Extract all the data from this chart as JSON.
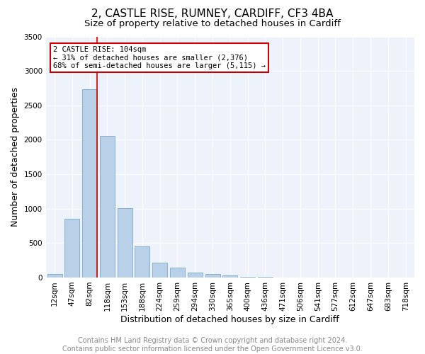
{
  "title1": "2, CASTLE RISE, RUMNEY, CARDIFF, CF3 4BA",
  "title2": "Size of property relative to detached houses in Cardiff",
  "xlabel": "Distribution of detached houses by size in Cardiff",
  "ylabel": "Number of detached properties",
  "categories": [
    "12sqm",
    "47sqm",
    "82sqm",
    "118sqm",
    "153sqm",
    "188sqm",
    "224sqm",
    "259sqm",
    "294sqm",
    "330sqm",
    "365sqm",
    "400sqm",
    "436sqm",
    "471sqm",
    "506sqm",
    "541sqm",
    "577sqm",
    "612sqm",
    "647sqm",
    "683sqm",
    "718sqm"
  ],
  "values": [
    55,
    850,
    2730,
    2060,
    1010,
    455,
    215,
    145,
    70,
    55,
    30,
    10,
    5,
    2,
    1,
    0,
    0,
    0,
    0,
    0,
    0
  ],
  "bar_color": "#b8d0e8",
  "bar_edge_color": "#7aaaca",
  "vline_color": "#cc0000",
  "annotation_text": "2 CASTLE RISE: 104sqm\n← 31% of detached houses are smaller (2,376)\n68% of semi-detached houses are larger (5,115) →",
  "annotation_box_color": "#cc0000",
  "ylim": [
    0,
    3500
  ],
  "yticks": [
    0,
    500,
    1000,
    1500,
    2000,
    2500,
    3000,
    3500
  ],
  "bg_color": "#eef2fb",
  "footer_text": "Contains HM Land Registry data © Crown copyright and database right 2024.\nContains public sector information licensed under the Open Government Licence v3.0.",
  "title1_fontsize": 11,
  "title2_fontsize": 9.5,
  "xlabel_fontsize": 9,
  "ylabel_fontsize": 9,
  "tick_fontsize": 7.5,
  "footer_fontsize": 7
}
